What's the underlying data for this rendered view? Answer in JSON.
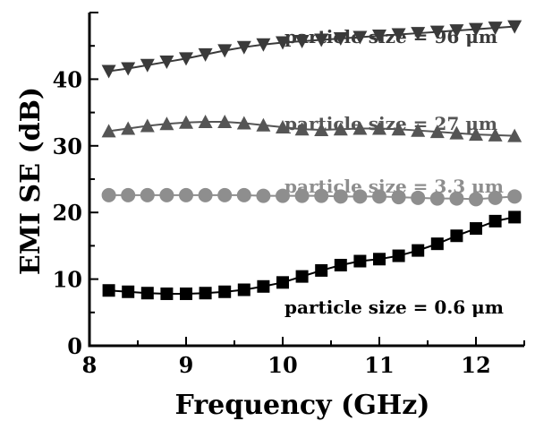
{
  "chart_data": {
    "type": "line",
    "xlabel": "Frequency (GHz)",
    "ylabel": "EMI SE (dB)",
    "xlim": [
      8,
      12.5
    ],
    "ylim": [
      0,
      50
    ],
    "xticks": [
      8,
      9,
      10,
      11,
      12
    ],
    "yticks": [
      0,
      10,
      20,
      30,
      40
    ],
    "legend": "inline",
    "grid": false,
    "x": [
      8.2,
      8.4,
      8.6,
      8.8,
      9.0,
      9.2,
      9.4,
      9.6,
      9.8,
      10.0,
      10.2,
      10.4,
      10.6,
      10.8,
      11.0,
      11.2,
      11.4,
      11.6,
      11.8,
      12.0,
      12.2,
      12.4
    ],
    "series": [
      {
        "name": "particle size = 96 μm",
        "marker": "triangle-down",
        "color": "#3a3a3a",
        "values": [
          41.2,
          41.6,
          42.1,
          42.6,
          43.1,
          43.7,
          44.3,
          44.8,
          45.2,
          45.5,
          45.7,
          45.9,
          46.1,
          46.3,
          46.5,
          46.7,
          46.9,
          47.1,
          47.3,
          47.5,
          47.7,
          47.9
        ]
      },
      {
        "name": "particle size = 27 μm",
        "marker": "triangle-up",
        "color": "#555555",
        "values": [
          32.2,
          32.6,
          33.0,
          33.3,
          33.5,
          33.6,
          33.6,
          33.4,
          33.1,
          32.8,
          32.5,
          32.4,
          32.5,
          32.6,
          32.6,
          32.5,
          32.3,
          32.1,
          31.9,
          31.7,
          31.6,
          31.5
        ]
      },
      {
        "name": "particle size = 3.3 μm",
        "marker": "circle",
        "color": "#8e8e8e",
        "values": [
          22.6,
          22.6,
          22.6,
          22.6,
          22.6,
          22.6,
          22.6,
          22.6,
          22.5,
          22.5,
          22.5,
          22.5,
          22.4,
          22.4,
          22.4,
          22.3,
          22.2,
          22.1,
          22.1,
          22.0,
          22.2,
          22.4
        ]
      },
      {
        "name": "particle size = 0.6 μm",
        "marker": "square",
        "color": "#000000",
        "values": [
          8.3,
          8.1,
          7.9,
          7.8,
          7.8,
          7.9,
          8.1,
          8.4,
          8.9,
          9.5,
          10.4,
          11.3,
          12.1,
          12.7,
          13.0,
          13.5,
          14.3,
          15.3,
          16.5,
          17.6,
          18.7,
          19.3
        ]
      }
    ]
  }
}
